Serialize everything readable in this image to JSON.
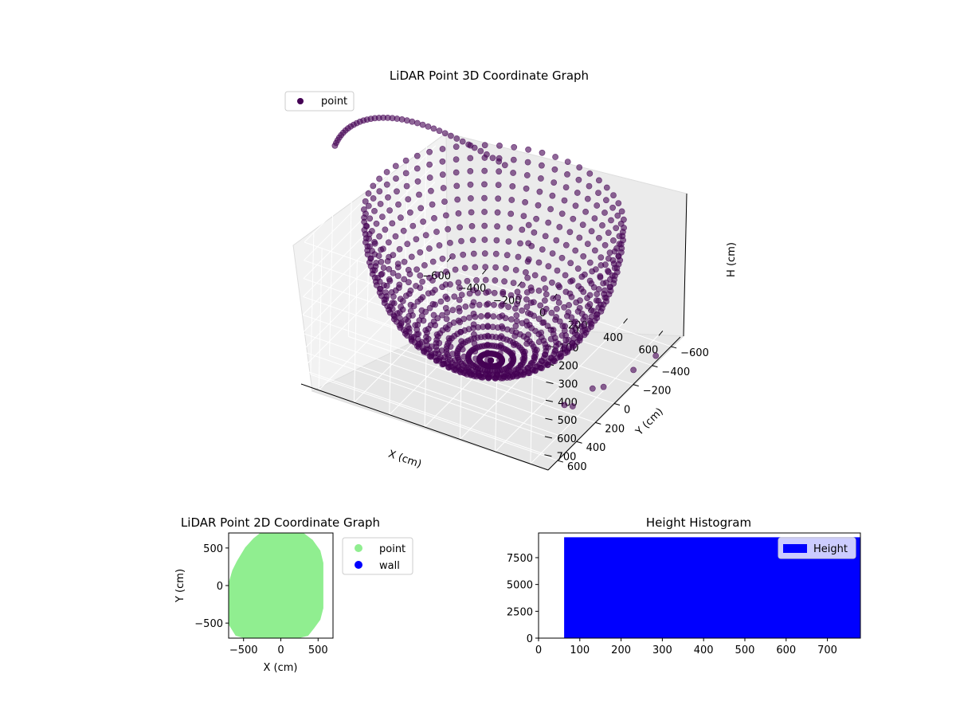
{
  "chart_data": [
    {
      "type": "scatter",
      "dimensions": 3,
      "title": "LiDAR Point 3D Coordinate Graph",
      "xlabel": "X (cm)",
      "ylabel": "Y (cm)",
      "zlabel": "H (cm)",
      "x_ticks": [
        "−600",
        "−400",
        "−200",
        "0",
        "200",
        "400",
        "600"
      ],
      "y_ticks": [
        "−600",
        "−400",
        "−200",
        "0",
        "200",
        "400",
        "600"
      ],
      "z_ticks": [
        "0",
        "100",
        "200",
        "300",
        "400",
        "500",
        "600",
        "700"
      ],
      "xlim": [
        -700,
        700
      ],
      "ylim": [
        -700,
        700
      ],
      "zlim": [
        0,
        780
      ],
      "z_inverted": true,
      "grid": true,
      "legend": {
        "placement": "top-left",
        "entries": [
          {
            "name": "point",
            "color": "#440154"
          }
        ]
      },
      "series": [
        {
          "name": "point",
          "color": "#440154",
          "shape": "hemispherical bowl of scan arcs, radius ~650 cm, deepest ~780 cm at center",
          "scan_arcs_count": 28,
          "stray_points": [
            {
              "x": 560,
              "y": 700,
              "z": -520
            },
            {
              "x": 560,
              "y": 700,
              "z": -420
            },
            {
              "x": 560,
              "y": 700,
              "z": -320
            },
            {
              "x": 560,
              "y": 700,
              "z": -230
            },
            {
              "x": 560,
              "y": 700,
              "z": -150
            },
            {
              "x": 560,
              "y": 700,
              "z": -70
            },
            {
              "x": 560,
              "y": 700,
              "z": 10
            },
            {
              "x": 680,
              "y": 200,
              "z": 600
            },
            {
              "x": 690,
              "y": 100,
              "z": 640
            },
            {
              "x": 700,
              "y": -200,
              "z": 700
            },
            {
              "x": 720,
              "y": -400,
              "z": 720
            },
            {
              "x": 690,
              "y": 520,
              "z": 520
            },
            {
              "x": 700,
              "y": 450,
              "z": 560
            }
          ]
        }
      ]
    },
    {
      "type": "scatter",
      "title": "LiDAR Point 2D Coordinate Graph",
      "xlabel": "X (cm)",
      "ylabel": "Y (cm)",
      "x_ticks": [
        "−500",
        "0",
        "500"
      ],
      "y_ticks": [
        "−500",
        "0",
        "500"
      ],
      "xlim": [
        -700,
        700
      ],
      "ylim": [
        -700,
        700
      ],
      "grid": false,
      "legend": {
        "placement": "outside-right",
        "entries": [
          {
            "name": "point",
            "color": "#90ee90"
          },
          {
            "name": "wall",
            "color": "#0000ff"
          }
        ]
      },
      "series": [
        {
          "name": "point",
          "color": "#90ee90",
          "outline": [
            [
              -260,
              700
            ],
            [
              -80,
              690
            ],
            [
              120,
              700
            ],
            [
              300,
              690
            ],
            [
              420,
              600
            ],
            [
              520,
              460
            ],
            [
              560,
              300
            ],
            [
              560,
              0
            ],
            [
              560,
              -300
            ],
            [
              520,
              -450
            ],
            [
              440,
              -560
            ],
            [
              360,
              -660
            ],
            [
              200,
              -700
            ],
            [
              -100,
              -700
            ],
            [
              -450,
              -700
            ],
            [
              -600,
              -660
            ],
            [
              -700,
              -500
            ],
            [
              -700,
              -200
            ],
            [
              -700,
              0
            ],
            [
              -640,
              200
            ],
            [
              -580,
              320
            ],
            [
              -470,
              500
            ],
            [
              -360,
              620
            ]
          ]
        },
        {
          "name": "wall",
          "color": "#0000ff",
          "points": []
        }
      ]
    },
    {
      "type": "bar",
      "title": "Height Histogram",
      "xlabel": "",
      "ylabel": "",
      "x_ticks": [
        "0",
        "100",
        "200",
        "300",
        "400",
        "500",
        "600",
        "700"
      ],
      "y_ticks": [
        "0",
        "2500",
        "5000",
        "7500"
      ],
      "xlim": [
        0,
        780
      ],
      "ylim": [
        0,
        9800
      ],
      "grid": false,
      "legend": {
        "placement": "top-right",
        "entries": [
          {
            "name": "Height",
            "color": "#0000ff"
          }
        ]
      },
      "series": [
        {
          "name": "Height",
          "color": "#0000ff",
          "bins": [
            {
              "from": 62,
              "to": 780,
              "count": 9400
            }
          ]
        }
      ]
    }
  ]
}
